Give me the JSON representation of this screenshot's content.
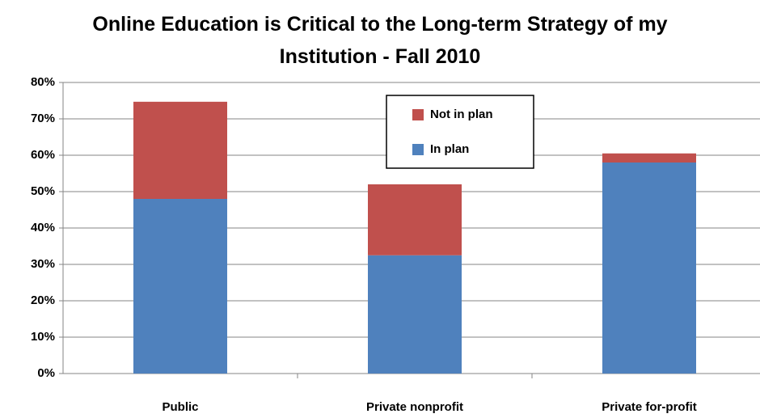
{
  "chart_data": {
    "type": "stacked-bar",
    "title": "Online Education is Critical to the Long-term Strategy of my Institution - Fall 2010",
    "categories": [
      "Public",
      "Private nonprofit",
      "Private for-profit"
    ],
    "series": [
      {
        "name": "In plan",
        "color": "#4f81bd",
        "values": [
          48,
          32.5,
          58
        ]
      },
      {
        "name": "Not in plan",
        "color": "#c0504d",
        "values": [
          26.7,
          19.5,
          2.5
        ]
      }
    ],
    "ylim": [
      0,
      80
    ],
    "yticks": [
      {
        "value": 0,
        "label": "0%"
      },
      {
        "value": 10,
        "label": "10%"
      },
      {
        "value": 20,
        "label": "20%"
      },
      {
        "value": 30,
        "label": "30%"
      },
      {
        "value": 40,
        "label": "40%"
      },
      {
        "value": 50,
        "label": "50%"
      },
      {
        "value": 60,
        "label": "60%"
      },
      {
        "value": 70,
        "label": "70%"
      },
      {
        "value": 80,
        "label": "80%"
      }
    ],
    "grid": true
  }
}
